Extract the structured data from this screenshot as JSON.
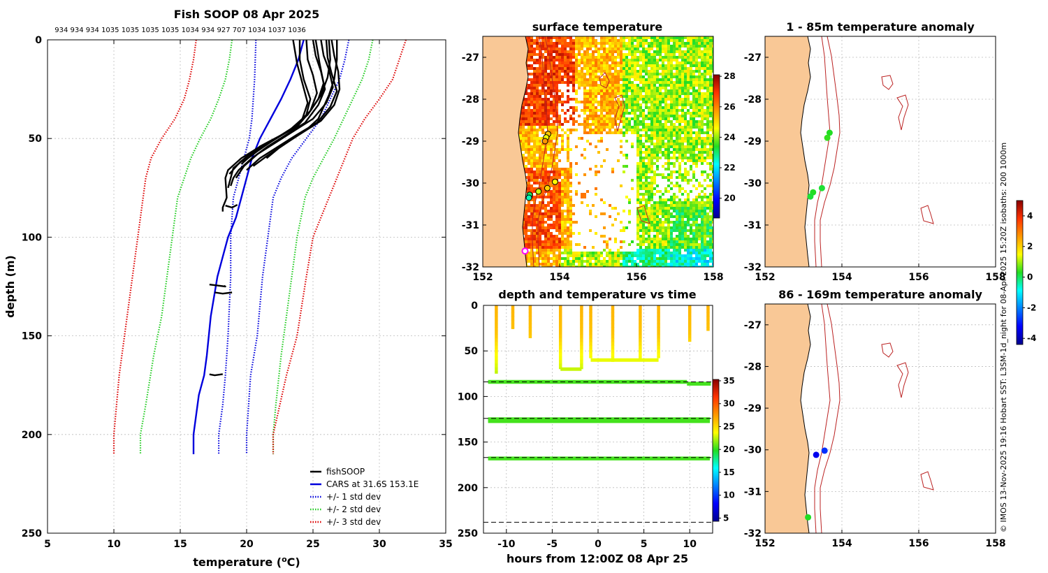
{
  "side_caption": "© IMOS 13-Nov-2025 19:16 Hobart SST: L3SM-1d_night for 08-Apr-2025 15:20Z isobaths: 200  1000m",
  "colors": {
    "fishsoop": "#000000",
    "cars": "#0000dd",
    "std1": "#0000dd",
    "std2": "#22cc22",
    "std3": "#dd0000",
    "land": "#f9c896",
    "isobath": "#bb2222",
    "marker_recent": "#ff00ff"
  },
  "chart_data": [
    {
      "id": "profile",
      "type": "line",
      "title": "Fish SOOP 08 Apr 2025",
      "top_labels": "934 934 934 1035 1035 1035 1035 1034 934 927 707 1034 1037 1036",
      "xlabel_main": "temperature (",
      "xlabel_sup": "o",
      "xlabel_tail": "C)",
      "ylabel": "depth (m)",
      "xlim": [
        5,
        35
      ],
      "ylim": [
        250,
        0
      ],
      "xticks": [
        "5",
        "10",
        "15",
        "20",
        "25",
        "30",
        "35"
      ],
      "yticks": [
        "0",
        "50",
        "100",
        "150",
        "200",
        "250"
      ],
      "legend": [
        "fishSOOP",
        "CARS at 31.6S 153.1E",
        "+/- 1 std dev",
        "+/- 2 std dev",
        "+/- 3 std dev"
      ],
      "series": [
        {
          "name": "CARS at 31.6S 153.1E",
          "style": "solid",
          "t": [
            24.3,
            23.9,
            23.3,
            22.6,
            21.8,
            21.0,
            20.4,
            20.0,
            19.6,
            19.2,
            18.6,
            18.2,
            17.8,
            17.3,
            17.0,
            16.8,
            16.4,
            16.0,
            16.0
          ],
          "d": [
            0,
            10,
            20,
            30,
            40,
            50,
            60,
            70,
            80,
            90,
            100,
            110,
            120,
            140,
            160,
            170,
            180,
            200,
            210
          ]
        },
        {
          "name": "+1 std",
          "style": "dotted",
          "t": [
            20.7,
            20.6,
            20.4,
            20.2,
            19.8,
            19.4,
            19.0,
            18.8,
            18.8,
            18.6,
            18.4,
            18.2,
            17.9,
            17.9
          ],
          "d": [
            0,
            20,
            40,
            50,
            60,
            70,
            80,
            100,
            120,
            150,
            170,
            185,
            200,
            210
          ]
        },
        {
          "name": "-1 std",
          "style": "dotted",
          "t": [
            27.7,
            27.4,
            27.0,
            26.3,
            25.6,
            24.5,
            23.4,
            22.6,
            22.0,
            21.6,
            21.2,
            20.8,
            20.3,
            20.0,
            20.0
          ],
          "d": [
            0,
            10,
            20,
            30,
            40,
            50,
            60,
            70,
            80,
            100,
            120,
            150,
            170,
            200,
            210
          ]
        },
        {
          "name": "+2 std",
          "style": "dotted",
          "t": [
            18.9,
            18.7,
            18.4,
            17.9,
            17.3,
            16.5,
            15.8,
            15.3,
            14.8,
            14.4,
            14.0,
            13.6,
            13.0,
            12.4,
            12.0,
            12.0
          ],
          "d": [
            0,
            10,
            20,
            30,
            40,
            50,
            60,
            70,
            80,
            100,
            120,
            140,
            160,
            185,
            200,
            210
          ]
        },
        {
          "name": "-2 std",
          "style": "dotted",
          "t": [
            29.5,
            29.2,
            28.7,
            28.0,
            27.3,
            26.6,
            25.8,
            25.0,
            24.4,
            23.8,
            23.4,
            23.0,
            22.6,
            22.2,
            22.0,
            22.0
          ],
          "d": [
            0,
            10,
            20,
            30,
            40,
            50,
            60,
            70,
            80,
            100,
            120,
            140,
            160,
            185,
            200,
            210
          ]
        },
        {
          "name": "+3 std",
          "style": "dotted",
          "t": [
            16.2,
            16.0,
            15.7,
            15.3,
            14.6,
            13.6,
            12.8,
            12.4,
            12.0,
            11.6,
            11.2,
            10.8,
            10.4,
            10.0,
            10.0
          ],
          "d": [
            0,
            10,
            20,
            30,
            40,
            50,
            60,
            70,
            90,
            110,
            130,
            150,
            170,
            200,
            210
          ]
        },
        {
          "name": "-3 std",
          "style": "dotted",
          "t": [
            32.0,
            31.5,
            31.0,
            30.0,
            28.9,
            28.0,
            27.4,
            26.8,
            26.2,
            25.6,
            25.0,
            24.5,
            23.8,
            23.0,
            22.0,
            22.0
          ],
          "d": [
            0,
            10,
            20,
            30,
            40,
            50,
            60,
            70,
            80,
            90,
            100,
            120,
            150,
            170,
            200,
            210
          ]
        }
      ],
      "fishsoop": [
        {
          "t": [
            24.0,
            24.0,
            24.3,
            24.8,
            24.5,
            23.5,
            22.2,
            20.8,
            19.6,
            18.6,
            18.4,
            18.5,
            18.2,
            18.2
          ],
          "d": [
            0,
            10,
            20,
            30,
            38,
            45,
            50,
            55,
            60,
            66,
            70,
            80,
            85,
            87
          ]
        },
        {
          "t": [
            24.5,
            24.6,
            25.0,
            25.3,
            24.8,
            23.8,
            22.4,
            21.0,
            19.9,
            19.0,
            18.8,
            18.6
          ],
          "d": [
            0,
            10,
            18,
            27,
            36,
            44,
            49,
            54,
            60,
            65,
            70,
            75
          ]
        },
        {
          "t": [
            25.0,
            25.2,
            25.6,
            25.9,
            25.4,
            24.4,
            23.0,
            21.6,
            20.4,
            19.4,
            19.0,
            18.8
          ],
          "d": [
            0,
            8,
            16,
            25,
            33,
            42,
            48,
            54,
            60,
            66,
            70,
            74
          ]
        },
        {
          "t": [
            25.6,
            25.8,
            26.2,
            26.5,
            26.0,
            25.0,
            23.6,
            22.2,
            20.8,
            19.8,
            19.2
          ],
          "d": [
            0,
            8,
            15,
            24,
            32,
            40,
            46,
            52,
            58,
            64,
            70
          ]
        },
        {
          "t": [
            26.0,
            26.1,
            26.4,
            26.8,
            26.3,
            25.3,
            23.8,
            22.4,
            21.0,
            20.0
          ],
          "d": [
            0,
            9,
            17,
            26,
            34,
            42,
            48,
            54,
            60,
            66
          ]
        },
        {
          "t": [
            26.4,
            26.6,
            26.9,
            27.0,
            26.6,
            25.6,
            24.2,
            22.8,
            21.5,
            20.5
          ],
          "d": [
            0,
            8,
            16,
            25,
            33,
            41,
            47,
            53,
            59,
            64
          ]
        },
        {
          "t": [
            26.8,
            26.8,
            26.6,
            26.2,
            25.8,
            25.4,
            24.6,
            23.5,
            22.4,
            21.5
          ],
          "d": [
            0,
            10,
            20,
            28,
            34,
            40,
            45,
            50,
            55,
            60
          ]
        },
        {
          "t": [
            23.5,
            23.8,
            24.2,
            24.6,
            24.2,
            23.2,
            22.0,
            20.6,
            19.5,
            18.7
          ],
          "d": [
            0,
            12,
            22,
            32,
            40,
            46,
            51,
            56,
            62,
            68
          ]
        },
        {
          "t": [
            25.2,
            25.5,
            25.8,
            25.4,
            24.6,
            23.4,
            22.0,
            20.6,
            19.6
          ],
          "d": [
            0,
            12,
            22,
            30,
            38,
            45,
            51,
            57,
            63
          ]
        },
        {
          "t": [
            26.2,
            26.3,
            26.1,
            25.6,
            24.8,
            23.6,
            22.2,
            20.9,
            19.7
          ],
          "d": [
            0,
            10,
            19,
            28,
            36,
            44,
            50,
            56,
            62
          ]
        },
        {
          "t": [
            17.2,
            17.8,
            18.4,
            18.3
          ],
          "d": [
            124,
            124.5,
            125,
            124.6
          ]
        },
        {
          "t": [
            17.6,
            18.2,
            18.9
          ],
          "d": [
            128,
            128.6,
            128
          ]
        },
        {
          "t": [
            17.2,
            17.6,
            18.2
          ],
          "d": [
            169.5,
            170,
            169.4
          ]
        },
        {
          "t": [
            18.4,
            18.9,
            19.3
          ],
          "d": [
            84,
            85,
            83.6
          ]
        }
      ]
    },
    {
      "id": "timeseries",
      "type": "scatter",
      "title": "depth and temperature vs time",
      "xlabel": "hours from 12:00Z 08 Apr 25",
      "xlim": [
        -12.5,
        12.5
      ],
      "ylim": [
        250,
        0
      ],
      "xticks": [
        "-10",
        "-5",
        "0",
        "5",
        "10"
      ],
      "yticks": [
        "0",
        "50",
        "100",
        "150",
        "200",
        "250"
      ],
      "colorbar": {
        "min": 4.3,
        "max": 35.3,
        "ticks": [
          "35",
          "30",
          "25",
          "20",
          "15",
          "10",
          "5"
        ]
      },
      "reference_depths": [
        84,
        124,
        167,
        238
      ],
      "dives": [
        {
          "t": -11.1,
          "bottom": 75
        },
        {
          "t": -9.3,
          "bottom": 26
        },
        {
          "t": -7.4,
          "bottom": 36
        },
        {
          "t": -4.1,
          "bottom": 70
        },
        {
          "t": -1.8,
          "bottom": 70
        },
        {
          "t": -0.8,
          "bottom": 58
        },
        {
          "t": 1.6,
          "bottom": 62
        },
        {
          "t": 4.6,
          "bottom": 60
        },
        {
          "t": 6.6,
          "bottom": 58
        },
        {
          "t": 10.0,
          "bottom": 40
        },
        {
          "t": 12.0,
          "bottom": 28
        }
      ],
      "bands": [
        {
          "depth": 84,
          "t0": -12.0,
          "t1": 9.7
        },
        {
          "depth": 86,
          "t0": 9.7,
          "t1": 12.3
        },
        {
          "depth": 125,
          "t0": -12.0,
          "t1": 12.2
        },
        {
          "depth": 127,
          "t0": -12.0,
          "t1": 12.2
        },
        {
          "depth": 168,
          "t0": -12.0,
          "t1": 12.2
        }
      ],
      "plateaus": [
        {
          "t0": -4.1,
          "t1": -1.8,
          "depth": 70
        },
        {
          "t0": -0.8,
          "t1": 6.6,
          "depth": 60
        }
      ]
    },
    {
      "id": "sst",
      "type": "heatmap",
      "title": "surface temperature",
      "lon_range": [
        152,
        158
      ],
      "lat_range": [
        -32,
        -26.5
      ],
      "xticks": [
        "152",
        "154",
        "156",
        "158"
      ],
      "yticks": [
        "-27",
        "-28",
        "-29",
        "-30",
        "-31",
        "-32"
      ],
      "colorbar": {
        "min": 18.7,
        "max": 28.1,
        "ticks": [
          "28",
          "26",
          "24",
          "22",
          "20"
        ]
      },
      "stations": [
        {
          "lon": 153.7,
          "lat": -28.83,
          "temp": 25.2
        },
        {
          "lon": 153.65,
          "lat": -28.91,
          "temp": 24.5
        },
        {
          "lon": 153.62,
          "lat": -29.0,
          "temp": 25.8
        },
        {
          "lon": 153.88,
          "lat": -29.97,
          "temp": 24.6
        },
        {
          "lon": 153.68,
          "lat": -30.12,
          "temp": 25.1
        },
        {
          "lon": 153.45,
          "lat": -30.2,
          "temp": 24.3
        },
        {
          "lon": 153.22,
          "lat": -30.28,
          "temp": 23.1
        },
        {
          "lon": 153.2,
          "lat": -30.35,
          "temp": 22.6
        }
      ],
      "recent_marker": {
        "lon": 153.1,
        "lat": -31.62
      }
    },
    {
      "id": "anom_shallow",
      "type": "scatter",
      "title": "1 - 85m temperature anomaly",
      "lon_range": [
        152,
        158
      ],
      "lat_range": [
        -32,
        -26.5
      ],
      "xticks": [
        "152",
        "154",
        "156",
        "158"
      ],
      "yticks": [
        "-27",
        "-28",
        "-29",
        "-30",
        "-31",
        "-32"
      ],
      "stations": [
        {
          "lon": 153.68,
          "lat": -28.8,
          "anom": 0.3
        },
        {
          "lon": 153.62,
          "lat": -28.92,
          "anom": 0.4
        },
        {
          "lon": 153.48,
          "lat": -30.12,
          "anom": 0.2
        },
        {
          "lon": 153.25,
          "lat": -30.22,
          "anom": 0.3
        },
        {
          "lon": 153.18,
          "lat": -30.32,
          "anom": 0.2
        }
      ]
    },
    {
      "id": "anom_deep",
      "type": "scatter",
      "title": "86 - 169m temperature anomaly",
      "lon_range": [
        152,
        158
      ],
      "lat_range": [
        -32,
        -26.5
      ],
      "xticks": [
        "152",
        "154",
        "156",
        "158"
      ],
      "yticks": [
        "-27",
        "-28",
        "-29",
        "-30",
        "-31",
        "-32"
      ],
      "colorbar": {
        "min": -4.4,
        "max": 5.0,
        "ticks": [
          "4",
          "2",
          "0",
          "-2",
          "-4"
        ]
      },
      "stations": [
        {
          "lon": 153.55,
          "lat": -30.02,
          "anom": -2.8
        },
        {
          "lon": 153.33,
          "lat": -30.12,
          "anom": -3.4
        },
        {
          "lon": 153.12,
          "lat": -31.62,
          "anom": 0.3
        }
      ]
    }
  ]
}
